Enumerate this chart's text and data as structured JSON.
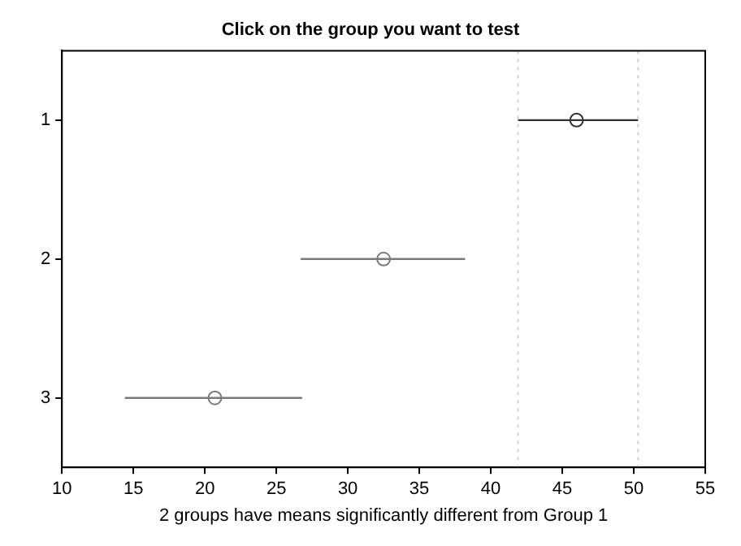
{
  "chart_data": {
    "type": "scatter",
    "orientation": "horizontal",
    "title": "Click on the group you want to test",
    "xlabel": "2 groups have means significantly different from Group 1",
    "categories": [
      "1",
      "2",
      "3"
    ],
    "values": [
      46,
      32.5,
      20.7
    ],
    "errors": [
      [
        41.9,
        50.3
      ],
      [
        26.7,
        38.2
      ],
      [
        14.4,
        26.8
      ]
    ],
    "colors": [
      "#333333",
      "#7a7a7a",
      "#7a7a7a"
    ],
    "marker": "circle",
    "grid": false,
    "legend": false,
    "xlim": [
      10,
      55
    ],
    "xticks": [
      10,
      15,
      20,
      25,
      30,
      35,
      40,
      45,
      50,
      55
    ],
    "ref_lines": [
      {
        "axis": "x",
        "value": 41.9,
        "color": "#d0d0d0",
        "line_style": "dotted"
      },
      {
        "axis": "x",
        "value": 50.3,
        "color": "#d0d0d0",
        "line_style": "dotted"
      }
    ]
  }
}
